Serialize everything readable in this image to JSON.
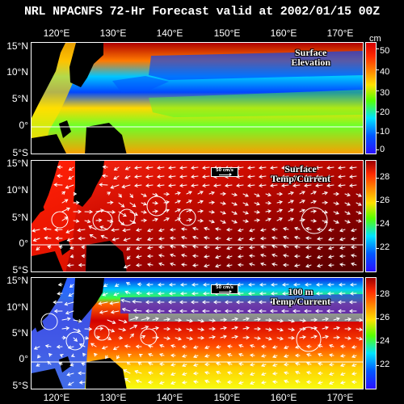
{
  "title": "NRL NPACNFS 72-Hr Forecast valid at 2002/01/15 00Z",
  "latitude_labels": [
    "15°N",
    "10°N",
    "5°N",
    "0°",
    "5°S"
  ],
  "longitude_labels": [
    "120°E",
    "130°E",
    "140°E",
    "150°E",
    "160°E",
    "170°E"
  ],
  "panels": [
    {
      "label_line1": "Surface",
      "label_line2": "Elevation",
      "scale_label": "",
      "colorbar_unit": "cm",
      "colorbar_ticks": [
        "50",
        "40",
        "30",
        "20",
        "10",
        "0"
      ]
    },
    {
      "label_line1": "Surface",
      "label_line2": "Temp/Current",
      "scale_label": "50 cm/s",
      "colorbar_unit": "",
      "colorbar_ticks": [
        "28",
        "26",
        "24",
        "22"
      ]
    },
    {
      "label_line1": "100 m",
      "label_line2": "Temp/Current",
      "scale_label": "50 cm/s",
      "colorbar_unit": "",
      "colorbar_ticks": [
        "28",
        "26",
        "24",
        "22"
      ]
    }
  ],
  "colors": {
    "background": "#000000",
    "land": "#000000",
    "grid": "#ffffff",
    "low": "#1b1bd8",
    "mid": "#22ff22",
    "high": "#e00000"
  }
}
